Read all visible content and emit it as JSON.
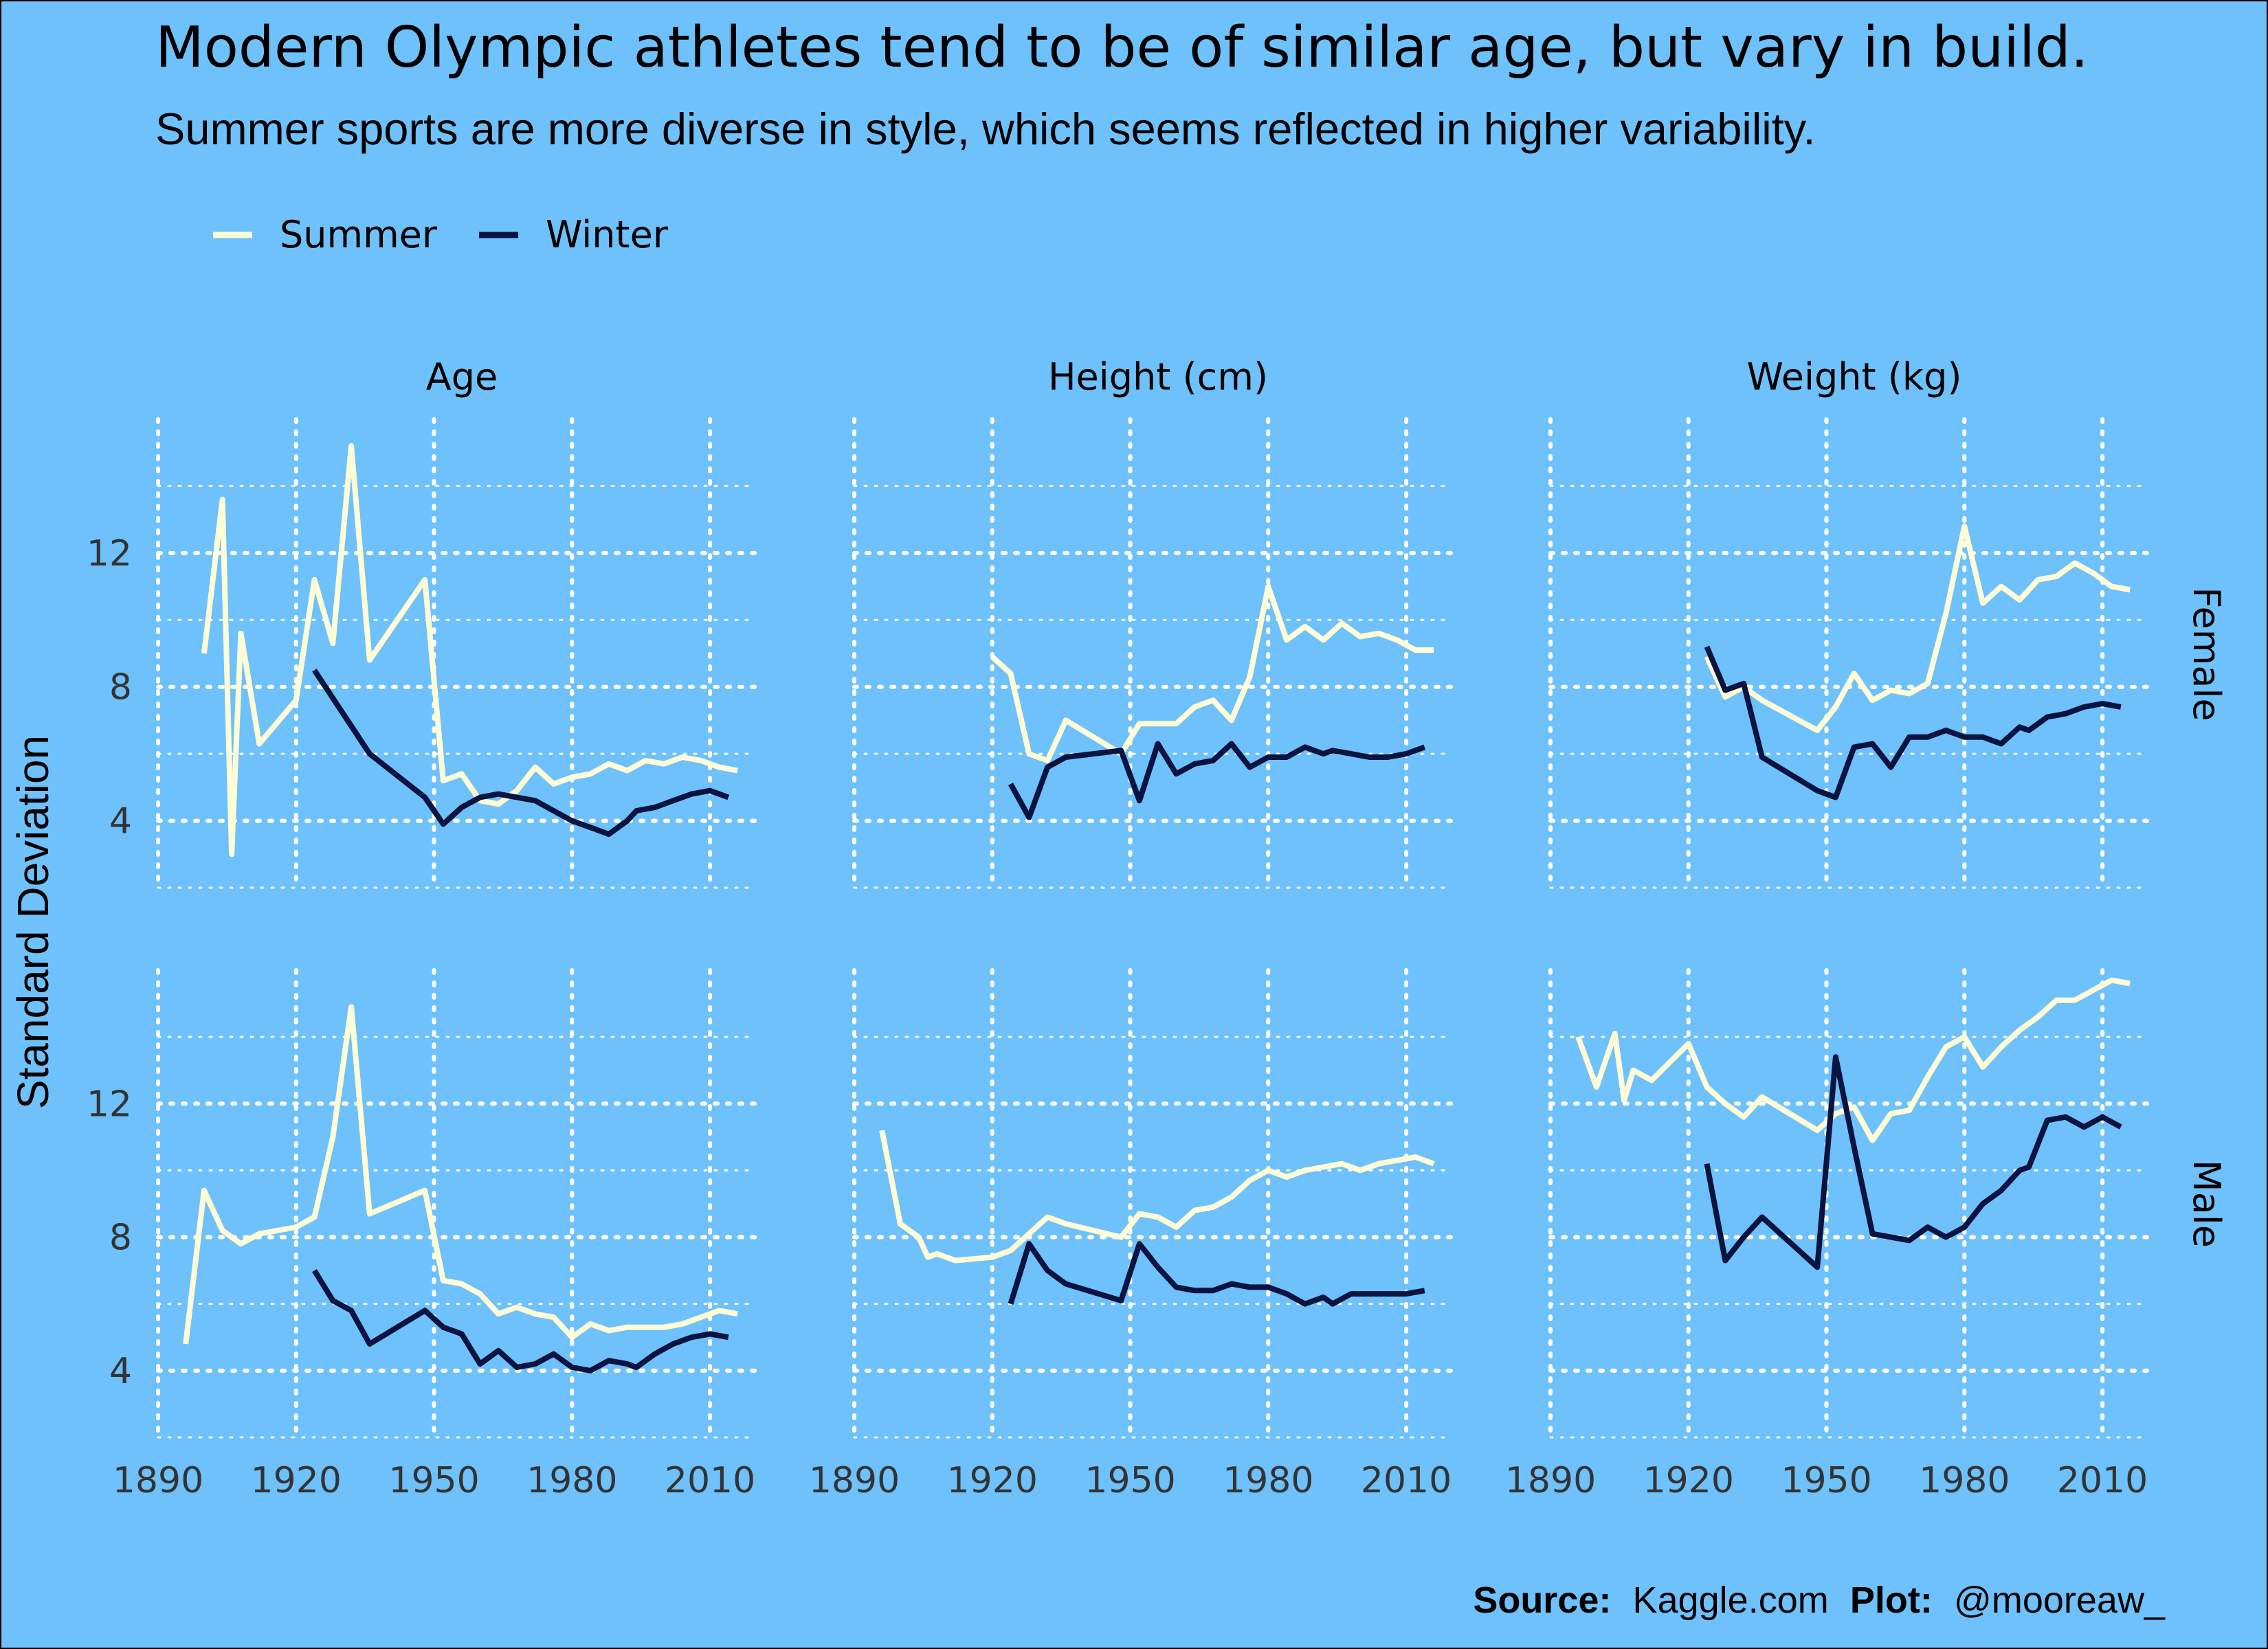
{
  "title": "Modern Olympic athletes tend to be of similar age, but vary in build.",
  "subtitle": "Summer sports are more diverse in style, which seems reflected in higher variability.",
  "colors": {
    "background": "#6ec1fb",
    "summer": "#fffdd6",
    "winter": "#0b1340",
    "grid": "#ffffff"
  },
  "caption": {
    "source_label": "Source:",
    "source_text": "Kaggle.com",
    "plot_label": "Plot:",
    "plot_text": "@mooreaw_"
  },
  "chart_data": {
    "type": "line",
    "ylabel": "Standard Deviation",
    "xlim": [
      1890,
      2020
    ],
    "x_ticks": [
      1890,
      1920,
      1950,
      1980,
      2010
    ],
    "y_ticks": [
      4,
      8,
      12
    ],
    "columns": [
      "Age",
      "Height (cm)",
      "Weight (kg)"
    ],
    "rows": [
      "Female",
      "Male"
    ],
    "ylim": {
      "Female": [
        2,
        16
      ],
      "Male": [
        2,
        16
      ]
    },
    "grid": true,
    "legend": {
      "position": "top-left",
      "entries": [
        "Summer",
        "Winter"
      ]
    },
    "series": [
      {
        "name": "Summer",
        "panel": [
          "Female",
          "Age"
        ],
        "points": [
          [
            1900,
            9.0
          ],
          [
            1904,
            13.6
          ],
          [
            1906,
            3.0
          ],
          [
            1908,
            9.6
          ],
          [
            1912,
            6.3
          ],
          [
            1920,
            7.6
          ],
          [
            1924,
            11.2
          ],
          [
            1928,
            9.3
          ],
          [
            1932,
            15.2
          ],
          [
            1936,
            8.8
          ],
          [
            1948,
            11.2
          ],
          [
            1952,
            5.2
          ],
          [
            1956,
            5.4
          ],
          [
            1960,
            4.6
          ],
          [
            1964,
            4.5
          ],
          [
            1968,
            4.9
          ],
          [
            1972,
            5.6
          ],
          [
            1976,
            5.1
          ],
          [
            1980,
            5.3
          ],
          [
            1984,
            5.4
          ],
          [
            1988,
            5.7
          ],
          [
            1992,
            5.5
          ],
          [
            1996,
            5.8
          ],
          [
            2000,
            5.7
          ],
          [
            2004,
            5.9
          ],
          [
            2008,
            5.8
          ],
          [
            2012,
            5.6
          ],
          [
            2016,
            5.5
          ]
        ]
      },
      {
        "name": "Winter",
        "panel": [
          "Female",
          "Age"
        ],
        "points": [
          [
            1924,
            8.5
          ],
          [
            1936,
            6.0
          ],
          [
            1948,
            4.7
          ],
          [
            1952,
            3.9
          ],
          [
            1956,
            4.4
          ],
          [
            1960,
            4.7
          ],
          [
            1964,
            4.8
          ],
          [
            1968,
            4.7
          ],
          [
            1972,
            4.6
          ],
          [
            1976,
            4.3
          ],
          [
            1980,
            4.0
          ],
          [
            1984,
            3.8
          ],
          [
            1988,
            3.6
          ],
          [
            1992,
            4.0
          ],
          [
            1994,
            4.3
          ],
          [
            1998,
            4.4
          ],
          [
            2002,
            4.6
          ],
          [
            2006,
            4.8
          ],
          [
            2010,
            4.9
          ],
          [
            2014,
            4.7
          ]
        ]
      },
      {
        "name": "Summer",
        "panel": [
          "Female",
          "Height (cm)"
        ],
        "points": [
          [
            1920,
            8.9
          ],
          [
            1924,
            8.4
          ],
          [
            1928,
            6.0
          ],
          [
            1932,
            5.8
          ],
          [
            1936,
            7.0
          ],
          [
            1948,
            6.0
          ],
          [
            1952,
            6.9
          ],
          [
            1956,
            6.9
          ],
          [
            1960,
            6.9
          ],
          [
            1964,
            7.4
          ],
          [
            1968,
            7.6
          ],
          [
            1972,
            7.0
          ],
          [
            1976,
            8.3
          ],
          [
            1980,
            11.0
          ],
          [
            1984,
            9.4
          ],
          [
            1988,
            9.8
          ],
          [
            1992,
            9.4
          ],
          [
            1996,
            9.9
          ],
          [
            2000,
            9.5
          ],
          [
            2004,
            9.6
          ],
          [
            2008,
            9.4
          ],
          [
            2012,
            9.1
          ],
          [
            2016,
            9.1
          ]
        ]
      },
      {
        "name": "Winter",
        "panel": [
          "Female",
          "Height (cm)"
        ],
        "points": [
          [
            1924,
            5.1
          ],
          [
            1928,
            4.1
          ],
          [
            1932,
            5.6
          ],
          [
            1936,
            5.9
          ],
          [
            1948,
            6.1
          ],
          [
            1952,
            4.6
          ],
          [
            1956,
            6.3
          ],
          [
            1960,
            5.4
          ],
          [
            1964,
            5.7
          ],
          [
            1968,
            5.8
          ],
          [
            1972,
            6.3
          ],
          [
            1976,
            5.6
          ],
          [
            1980,
            5.9
          ],
          [
            1984,
            5.9
          ],
          [
            1988,
            6.2
          ],
          [
            1992,
            6.0
          ],
          [
            1994,
            6.1
          ],
          [
            1998,
            6.0
          ],
          [
            2002,
            5.9
          ],
          [
            2006,
            5.9
          ],
          [
            2010,
            6.0
          ],
          [
            2014,
            6.2
          ]
        ]
      },
      {
        "name": "Summer",
        "panel": [
          "Female",
          "Weight (kg)"
        ],
        "points": [
          [
            1924,
            8.9
          ],
          [
            1928,
            7.7
          ],
          [
            1932,
            8.0
          ],
          [
            1936,
            7.6
          ],
          [
            1948,
            6.7
          ],
          [
            1952,
            7.4
          ],
          [
            1956,
            8.4
          ],
          [
            1960,
            7.6
          ],
          [
            1964,
            7.9
          ],
          [
            1968,
            7.8
          ],
          [
            1972,
            8.1
          ],
          [
            1976,
            10.2
          ],
          [
            1980,
            12.8
          ],
          [
            1984,
            10.5
          ],
          [
            1988,
            11.0
          ],
          [
            1992,
            10.6
          ],
          [
            1996,
            11.2
          ],
          [
            2000,
            11.3
          ],
          [
            2004,
            11.7
          ],
          [
            2008,
            11.4
          ],
          [
            2012,
            11.0
          ],
          [
            2016,
            10.9
          ]
        ]
      },
      {
        "name": "Winter",
        "panel": [
          "Female",
          "Weight (kg)"
        ],
        "points": [
          [
            1924,
            9.2
          ],
          [
            1928,
            7.9
          ],
          [
            1932,
            8.1
          ],
          [
            1936,
            5.9
          ],
          [
            1948,
            4.9
          ],
          [
            1952,
            4.7
          ],
          [
            1956,
            6.2
          ],
          [
            1960,
            6.3
          ],
          [
            1964,
            5.6
          ],
          [
            1968,
            6.5
          ],
          [
            1972,
            6.5
          ],
          [
            1976,
            6.7
          ],
          [
            1980,
            6.5
          ],
          [
            1984,
            6.5
          ],
          [
            1988,
            6.3
          ],
          [
            1992,
            6.8
          ],
          [
            1994,
            6.7
          ],
          [
            1998,
            7.1
          ],
          [
            2002,
            7.2
          ],
          [
            2006,
            7.4
          ],
          [
            2010,
            7.5
          ],
          [
            2014,
            7.4
          ]
        ]
      },
      {
        "name": "Summer",
        "panel": [
          "Male",
          "Age"
        ],
        "points": [
          [
            1896,
            4.8
          ],
          [
            1900,
            9.4
          ],
          [
            1904,
            8.2
          ],
          [
            1908,
            7.8
          ],
          [
            1912,
            8.1
          ],
          [
            1920,
            8.3
          ],
          [
            1924,
            8.6
          ],
          [
            1928,
            11.0
          ],
          [
            1932,
            14.9
          ],
          [
            1936,
            8.7
          ],
          [
            1948,
            9.4
          ],
          [
            1952,
            6.7
          ],
          [
            1956,
            6.6
          ],
          [
            1960,
            6.3
          ],
          [
            1964,
            5.7
          ],
          [
            1968,
            5.9
          ],
          [
            1972,
            5.7
          ],
          [
            1976,
            5.6
          ],
          [
            1980,
            5.0
          ],
          [
            1984,
            5.4
          ],
          [
            1988,
            5.2
          ],
          [
            1992,
            5.3
          ],
          [
            1996,
            5.3
          ],
          [
            2000,
            5.3
          ],
          [
            2004,
            5.4
          ],
          [
            2008,
            5.6
          ],
          [
            2012,
            5.8
          ],
          [
            2016,
            5.7
          ]
        ]
      },
      {
        "name": "Winter",
        "panel": [
          "Male",
          "Age"
        ],
        "points": [
          [
            1924,
            7.0
          ],
          [
            1928,
            6.1
          ],
          [
            1932,
            5.8
          ],
          [
            1936,
            4.8
          ],
          [
            1948,
            5.8
          ],
          [
            1952,
            5.3
          ],
          [
            1956,
            5.1
          ],
          [
            1960,
            4.2
          ],
          [
            1964,
            4.6
          ],
          [
            1968,
            4.1
          ],
          [
            1972,
            4.2
          ],
          [
            1976,
            4.5
          ],
          [
            1980,
            4.1
          ],
          [
            1984,
            4.0
          ],
          [
            1988,
            4.3
          ],
          [
            1992,
            4.2
          ],
          [
            1994,
            4.1
          ],
          [
            1998,
            4.5
          ],
          [
            2002,
            4.8
          ],
          [
            2006,
            5.0
          ],
          [
            2010,
            5.1
          ],
          [
            2014,
            5.0
          ]
        ]
      },
      {
        "name": "Summer",
        "panel": [
          "Male",
          "Height (cm)"
        ],
        "points": [
          [
            1896,
            11.2
          ],
          [
            1900,
            8.4
          ],
          [
            1904,
            8.0
          ],
          [
            1906,
            7.4
          ],
          [
            1908,
            7.5
          ],
          [
            1912,
            7.3
          ],
          [
            1920,
            7.4
          ],
          [
            1924,
            7.6
          ],
          [
            1928,
            8.1
          ],
          [
            1932,
            8.6
          ],
          [
            1936,
            8.4
          ],
          [
            1948,
            8.0
          ],
          [
            1952,
            8.7
          ],
          [
            1956,
            8.6
          ],
          [
            1960,
            8.3
          ],
          [
            1964,
            8.8
          ],
          [
            1968,
            8.9
          ],
          [
            1972,
            9.2
          ],
          [
            1976,
            9.7
          ],
          [
            1980,
            10.0
          ],
          [
            1984,
            9.8
          ],
          [
            1988,
            10.0
          ],
          [
            1992,
            10.1
          ],
          [
            1996,
            10.2
          ],
          [
            2000,
            10.0
          ],
          [
            2004,
            10.2
          ],
          [
            2008,
            10.3
          ],
          [
            2012,
            10.4
          ],
          [
            2016,
            10.2
          ]
        ]
      },
      {
        "name": "Winter",
        "panel": [
          "Male",
          "Height (cm)"
        ],
        "points": [
          [
            1924,
            6.0
          ],
          [
            1928,
            7.8
          ],
          [
            1932,
            7.0
          ],
          [
            1936,
            6.6
          ],
          [
            1948,
            6.1
          ],
          [
            1952,
            7.8
          ],
          [
            1956,
            7.1
          ],
          [
            1960,
            6.5
          ],
          [
            1964,
            6.4
          ],
          [
            1968,
            6.4
          ],
          [
            1972,
            6.6
          ],
          [
            1976,
            6.5
          ],
          [
            1980,
            6.5
          ],
          [
            1984,
            6.3
          ],
          [
            1988,
            6.0
          ],
          [
            1992,
            6.2
          ],
          [
            1994,
            6.0
          ],
          [
            1998,
            6.3
          ],
          [
            2002,
            6.3
          ],
          [
            2006,
            6.3
          ],
          [
            2010,
            6.3
          ],
          [
            2014,
            6.4
          ]
        ]
      },
      {
        "name": "Summer",
        "panel": [
          "Male",
          "Weight (kg)"
        ],
        "points": [
          [
            1896,
            14.0
          ],
          [
            1900,
            12.5
          ],
          [
            1904,
            14.1
          ],
          [
            1906,
            12.1
          ],
          [
            1908,
            13.0
          ],
          [
            1912,
            12.7
          ],
          [
            1920,
            13.8
          ],
          [
            1924,
            12.5
          ],
          [
            1928,
            12.0
          ],
          [
            1932,
            11.6
          ],
          [
            1936,
            12.2
          ],
          [
            1948,
            11.2
          ],
          [
            1952,
            11.7
          ],
          [
            1956,
            11.9
          ],
          [
            1960,
            10.9
          ],
          [
            1964,
            11.7
          ],
          [
            1968,
            11.8
          ],
          [
            1972,
            12.8
          ],
          [
            1976,
            13.7
          ],
          [
            1980,
            14.0
          ],
          [
            1984,
            13.1
          ],
          [
            1988,
            13.7
          ],
          [
            1992,
            14.2
          ],
          [
            1996,
            14.6
          ],
          [
            2000,
            15.1
          ],
          [
            2004,
            15.1
          ],
          [
            2008,
            15.4
          ],
          [
            2012,
            15.7
          ],
          [
            2016,
            15.6
          ]
        ]
      },
      {
        "name": "Winter",
        "panel": [
          "Male",
          "Weight (kg)"
        ],
        "points": [
          [
            1924,
            10.2
          ],
          [
            1928,
            7.3
          ],
          [
            1932,
            8.0
          ],
          [
            1936,
            8.6
          ],
          [
            1948,
            7.1
          ],
          [
            1952,
            13.4
          ],
          [
            1956,
            10.7
          ],
          [
            1960,
            8.1
          ],
          [
            1964,
            8.0
          ],
          [
            1968,
            7.9
          ],
          [
            1972,
            8.3
          ],
          [
            1976,
            8.0
          ],
          [
            1980,
            8.3
          ],
          [
            1984,
            9.0
          ],
          [
            1988,
            9.4
          ],
          [
            1992,
            10.0
          ],
          [
            1994,
            10.1
          ],
          [
            1998,
            11.5
          ],
          [
            2002,
            11.6
          ],
          [
            2006,
            11.3
          ],
          [
            2010,
            11.6
          ],
          [
            2014,
            11.3
          ]
        ]
      }
    ]
  }
}
